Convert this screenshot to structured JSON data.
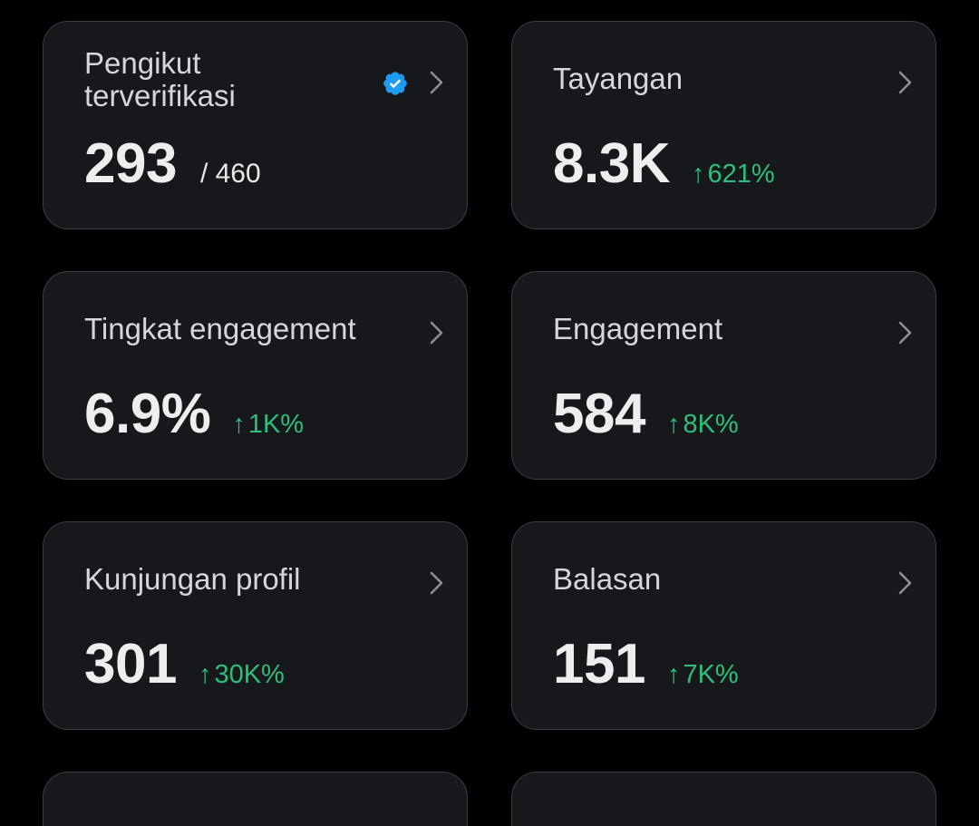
{
  "cards": [
    {
      "title": "Pengikut terverifikasi",
      "value": "293",
      "secondary": "/ 460",
      "icon": "verified-badge-icon"
    },
    {
      "title": "Tayangan",
      "value": "8.3K",
      "arrow": "↑",
      "change": "621%"
    },
    {
      "title": "Tingkat engagement",
      "value": "6.9%",
      "arrow": "↑",
      "change": "1K%"
    },
    {
      "title": "Engagement",
      "value": "584",
      "arrow": "↑",
      "change": "8K%"
    },
    {
      "title": "Kunjungan profil",
      "value": "301",
      "arrow": "↑",
      "change": "30K%"
    },
    {
      "title": "Balasan",
      "value": "151",
      "arrow": "↑",
      "change": "7K%"
    }
  ],
  "colors": {
    "background": "#000000",
    "card": "#16181c",
    "border": "#3a3d42",
    "positive": "#2dbf7a",
    "verified": "#1d9bf0"
  }
}
